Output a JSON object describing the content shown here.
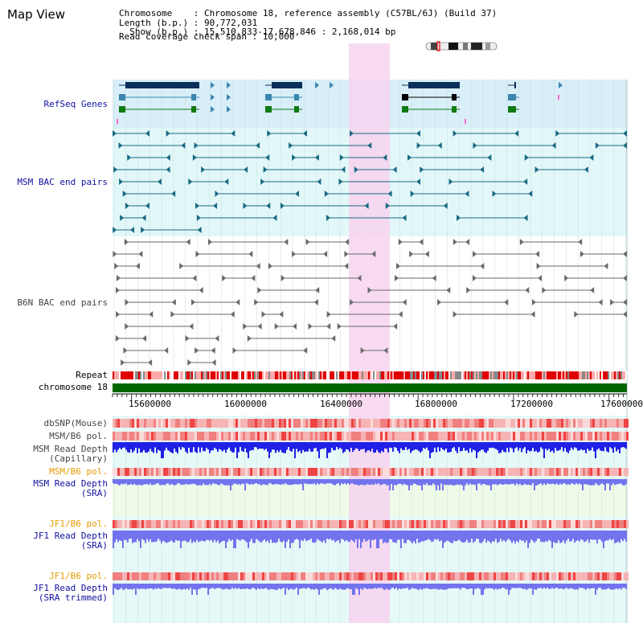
{
  "title": "Map View",
  "info": {
    "chromosome_key": "Chromosome",
    "chromosome_val": ": Chromosome 18, reference assembly (C57BL/6J) (Build 37)",
    "length_key": "Length (b.p.)",
    "length_val": ": 90,772,031",
    "show_key": "Show (b.p.)",
    "show_val": ": 15,510,833-17,678,846 : 2,168,014 bp",
    "coverage_line": "Read coverage check span : 10,000"
  },
  "tracks": {
    "refseq": "RefSeq Genes",
    "msm_bac": "MSM BAC end pairs",
    "b6n_bac": "B6N BAC end pairs",
    "repeat": "Repeat",
    "chromosome": "chromosome 18",
    "dbsnp": "dbSNP(Mouse)",
    "msm_b6_pol_1": "MSM/B6 pol.",
    "msm_depth_cap_1": "MSM Read Depth",
    "msm_depth_cap_2": "(Capillary)",
    "msm_b6_pol_2": "MSM/B6 pol.",
    "msm_depth_sra_1": "MSM Read Depth",
    "msm_depth_sra_2": "(SRA)",
    "jf1_b6_pol_1": "JF1/B6 pol.",
    "jf1_depth_sra_1": "JF1 Read Depth",
    "jf1_depth_sra_2": "(SRA)",
    "jf1_b6_pol_2": "JF1/B6 pol.",
    "jf1_depth_trim_1": "JF1 Read Depth",
    "jf1_depth_trim_2": "(SRA trimmed)"
  },
  "axis": {
    "ticks": [
      "15600000",
      "16000000",
      "16400000",
      "16800000",
      "17200000",
      "17600000"
    ]
  },
  "colors": {
    "highlight": "#f7d3ef",
    "refseq_bg": "#d8eef8",
    "bac_bg": "#e2f8f8",
    "gene_dark": "#0b2f5a",
    "gene_mid": "#3a86b0",
    "gene_green": "#0f7a10",
    "msm_bac": "#1a6a84",
    "b6n_bac": "#6a6a6a",
    "chrom_green": "#006600",
    "depth_blue": "#2020e6",
    "depth_light": "#7373ee",
    "label_blue": "#1010a0",
    "label_orange": "#e59b00"
  }
}
